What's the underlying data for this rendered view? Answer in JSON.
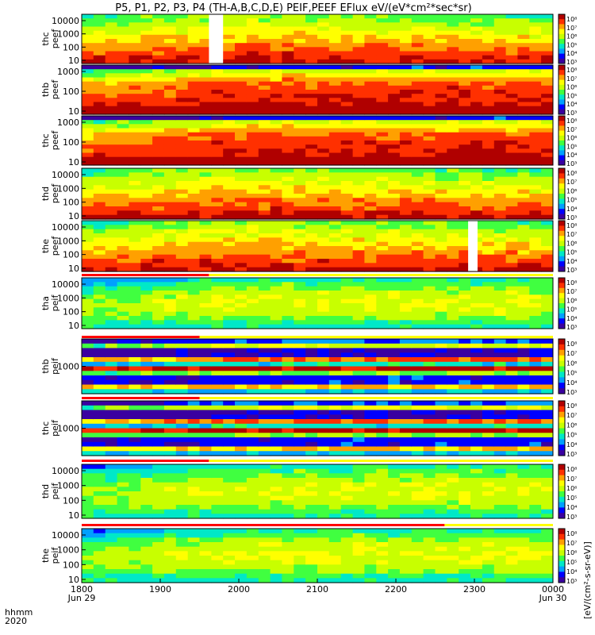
{
  "chart_data": {
    "type": "heatmap",
    "title": "P5, P1, P2, P3, P4 (TH-A,B,C,D,E) PEIF,PEEF EFlux eV/(eV*cm²*sec*sr)",
    "x_axis": {
      "row_labels": [
        "hhmm",
        "2020"
      ],
      "ticks": [
        {
          "label": "1800",
          "sub": "Jun 29"
        },
        {
          "label": "1900",
          "sub": ""
        },
        {
          "label": "2000",
          "sub": ""
        },
        {
          "label": "2100",
          "sub": ""
        },
        {
          "label": "2200",
          "sub": ""
        },
        {
          "label": "2300",
          "sub": ""
        },
        {
          "label": "0000",
          "sub": "Jun 30"
        }
      ]
    },
    "colorbar_units": "[eV/(cm²-s-sr-eV)]",
    "colors": {
      "scale": [
        "#3a00a0",
        "#0000ff",
        "#00a0ff",
        "#00e8c8",
        "#40ff40",
        "#c8ff00",
        "#ffff00",
        "#ffa000",
        "#ff3000",
        "#b00000"
      ],
      "bar_red": "#ff0000",
      "bar_yellow": "#ffff00"
    },
    "panels": [
      {
        "probe": "thc",
        "product": "peef",
        "yticks": [
          "10000",
          "1000",
          "100",
          "10"
        ],
        "cbar": [
          "10⁸",
          "10⁷",
          "10⁶",
          "10⁵",
          "10⁴",
          "10³"
        ]
      },
      {
        "probe": "thb",
        "product": "peef",
        "yticks": [
          "1000",
          "100",
          "10"
        ],
        "cbar": [
          "10⁸",
          "10⁷",
          "10⁶",
          "10⁵",
          "10⁴",
          "10³"
        ]
      },
      {
        "probe": "thc",
        "product": "peef",
        "yticks": [
          "1000",
          "100",
          "10"
        ],
        "cbar": [
          "10⁸",
          "10⁷",
          "10⁶",
          "10⁵",
          "10⁴",
          "10³"
        ]
      },
      {
        "probe": "thd",
        "product": "peef",
        "yticks": [
          "10000",
          "1000",
          "100",
          "10"
        ],
        "cbar": [
          "10⁸",
          "10⁷",
          "10⁶",
          "10⁵",
          "10⁴",
          "10³"
        ]
      },
      {
        "probe": "the",
        "product": "peef",
        "yticks": [
          "10000",
          "1000",
          "100",
          "10"
        ],
        "cbar": [
          "10⁸",
          "10⁷",
          "10⁶",
          "10⁵",
          "10⁴",
          "10³"
        ]
      },
      {
        "probe": "tha",
        "product": "peif",
        "yticks": [
          "10000",
          "1000",
          "100",
          "10"
        ],
        "cbar": [
          "10⁸",
          "10⁷",
          "10⁶",
          "10⁵",
          "10⁴",
          "10³"
        ]
      },
      {
        "probe": "thb",
        "product": "peif",
        "yticks": [
          "1000"
        ],
        "cbar": [
          "10⁸",
          "10⁷",
          "10⁶",
          "10⁵",
          "10⁴",
          "10³"
        ]
      },
      {
        "probe": "thc",
        "product": "peif",
        "yticks": [
          "1000"
        ],
        "cbar": [
          "10⁸",
          "10⁷",
          "10⁶",
          "10⁵",
          "10⁴",
          "10³"
        ]
      },
      {
        "probe": "thd",
        "product": "peif",
        "yticks": [
          "10000",
          "1000",
          "100",
          "10"
        ],
        "cbar": [
          "10⁸",
          "10⁷",
          "10⁶",
          "10⁵",
          "10⁴",
          "10³"
        ]
      },
      {
        "probe": "the",
        "product": "peif",
        "yticks": [
          "10000",
          "1000",
          "100",
          "10"
        ],
        "cbar": [
          "10⁸",
          "10⁷",
          "10⁶",
          "10⁵",
          "10⁴",
          "10³"
        ]
      }
    ]
  }
}
